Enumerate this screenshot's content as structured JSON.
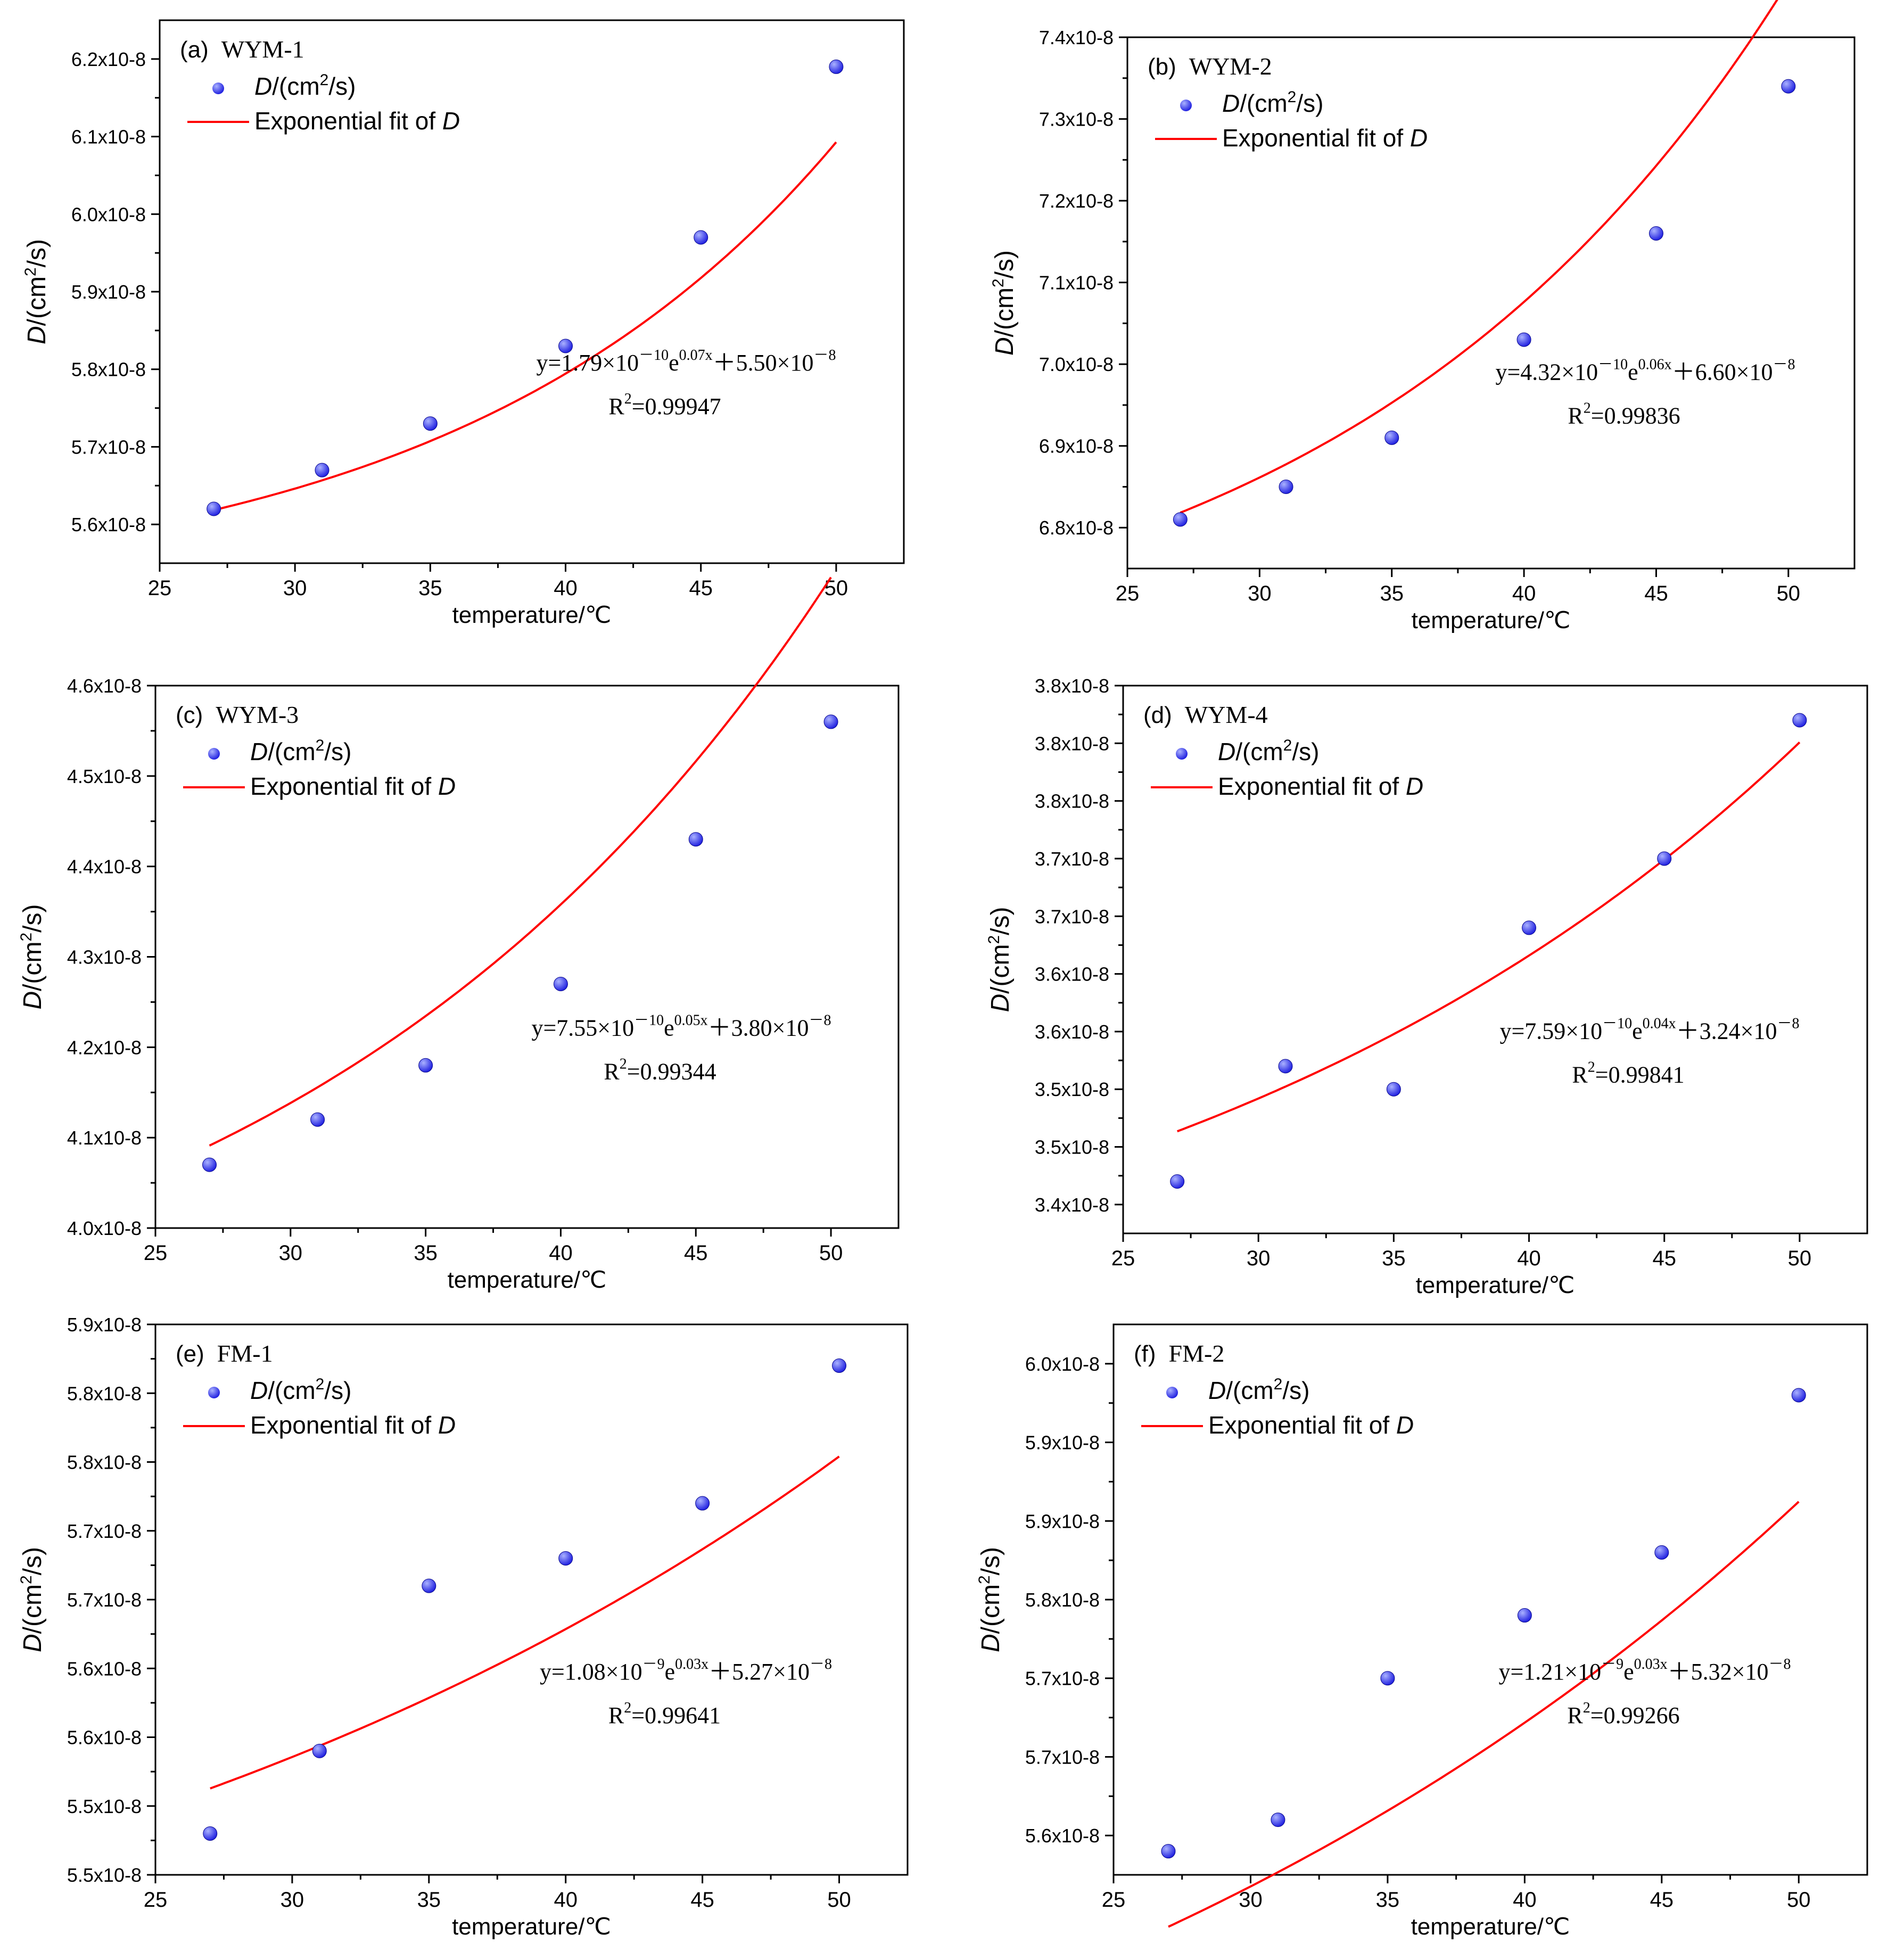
{
  "figure": {
    "x_axis_label": "temperature/℃",
    "y_axis_label_parts": [
      "D",
      "/(cm",
      "2",
      "/s)"
    ],
    "legend_marker_label_parts": [
      "D",
      "/(cm",
      "2",
      "/s)"
    ],
    "legend_fit_label_parts": [
      "Exponential fit of ",
      "D"
    ]
  },
  "colors": {
    "point": "#1f1fe0",
    "point_highlight": "#aab2ff",
    "fit_line": "#ff0000",
    "axis": "#000000"
  },
  "chart_data": [
    {
      "type": "scatter",
      "panel": "(a)",
      "title": "WYM-1",
      "x": [
        27,
        31,
        35,
        40,
        45,
        50
      ],
      "y": [
        5.62,
        5.67,
        5.73,
        5.83,
        5.97,
        6.19
      ],
      "y_unit": "x10^-8 cm2/s",
      "xlim": [
        25,
        52.5
      ],
      "ylim": [
        5.55,
        6.25
      ],
      "xticks": [
        25,
        30,
        35,
        40,
        45,
        50
      ],
      "yticks": [
        5.6,
        5.7,
        5.8,
        5.9,
        6.0,
        6.1,
        6.2
      ],
      "ytick_labels": [
        "5.6x10-8",
        "5.7x10-8",
        "5.8x10-8",
        "5.9x10-8",
        "6.0x10-8",
        "6.1x10-8",
        "6.2x10-8"
      ],
      "fit": {
        "a": 0.0179,
        "b": 0.07,
        "c": 5.5
      },
      "equation_parts": [
        "y=1.79×10",
        "－10",
        "e",
        "0.07x",
        "＋5.50×10",
        "－8"
      ],
      "r2_parts": [
        "R",
        "2",
        "=0.99947"
      ]
    },
    {
      "type": "scatter",
      "panel": "(b)",
      "title": "WYM-2",
      "x": [
        27,
        31,
        35,
        40,
        45,
        50
      ],
      "y": [
        6.81,
        6.85,
        6.91,
        7.03,
        7.16,
        7.34
      ],
      "y_unit": "x10^-8 cm2/s",
      "xlim": [
        25,
        52.5
      ],
      "ylim": [
        6.75,
        7.4
      ],
      "xticks": [
        25,
        30,
        35,
        40,
        45,
        50
      ],
      "yticks": [
        6.8,
        6.9,
        7.0,
        7.1,
        7.2,
        7.3,
        7.4
      ],
      "ytick_labels": [
        "6.8x10-8",
        "6.9x10-8",
        "7.0x10-8",
        "7.1x10-8",
        "7.2x10-8",
        "7.3x10-8",
        "7.4x10-8"
      ],
      "fit": {
        "a": 0.0432,
        "b": 0.06,
        "c": 6.6
      },
      "equation_parts": [
        "y=4.32×10",
        "－10",
        "e",
        "0.06x",
        "＋6.60×10",
        "－8"
      ],
      "r2_parts": [
        "R",
        "2",
        "=0.99836"
      ]
    },
    {
      "type": "scatter",
      "panel": "(c)",
      "title": "WYM-3",
      "x": [
        27,
        31,
        35,
        40,
        45,
        50
      ],
      "y": [
        4.07,
        4.12,
        4.18,
        4.27,
        4.43,
        4.56
      ],
      "y_unit": "x10^-8 cm2/s",
      "xlim": [
        25,
        52.5
      ],
      "ylim": [
        4.0,
        4.6
      ],
      "xticks": [
        25,
        30,
        35,
        40,
        45,
        50
      ],
      "yticks": [
        4.0,
        4.1,
        4.2,
        4.3,
        4.4,
        4.5,
        4.6
      ],
      "ytick_labels": [
        "4.0x10-8",
        "4.1x10-8",
        "4.2x10-8",
        "4.3x10-8",
        "4.4x10-8",
        "4.5x10-8",
        "4.6x10-8"
      ],
      "fit": {
        "a": 0.0755,
        "b": 0.05,
        "c": 3.8
      },
      "equation_parts": [
        "y=7.55×10",
        "－10",
        "e",
        "0.05x",
        "＋3.80×10",
        "－8"
      ],
      "r2_parts": [
        "R",
        "2",
        "=0.99344"
      ]
    },
    {
      "type": "scatter",
      "panel": "(d)",
      "title": "WYM-4",
      "x": [
        27,
        31,
        35,
        40,
        45,
        50
      ],
      "y": [
        3.42,
        3.52,
        3.5,
        3.64,
        3.7,
        3.82
      ],
      "y_unit": "x10^-8 cm2/s",
      "xlim": [
        25,
        52.5
      ],
      "ylim": [
        3.375,
        3.85
      ],
      "xticks": [
        25,
        30,
        35,
        40,
        45,
        50
      ],
      "yticks": [
        3.4,
        3.45,
        3.5,
        3.55,
        3.6,
        3.65,
        3.7,
        3.75,
        3.8,
        3.85
      ],
      "ytick_labels": [
        "3.4x10-8",
        "3.5x10-8",
        "3.5x10-8",
        "3.6x10-8",
        "3.6x10-8",
        "3.7x10-8",
        "3.7x10-8",
        "3.8x10-8",
        "3.8x10-8",
        "3.8x10-8"
      ],
      "fit": {
        "a": 0.0759,
        "b": 0.04,
        "c": 3.24
      },
      "equation_parts": [
        "y=7.59×10",
        "－10",
        "e",
        "0.04x",
        "＋3.24×10",
        "－8"
      ],
      "r2_parts": [
        "R",
        "2",
        "=0.99841"
      ]
    },
    {
      "type": "scatter",
      "panel": "(e)",
      "title": "FM-1",
      "x": [
        27,
        31,
        35,
        40,
        45,
        50
      ],
      "y": [
        5.48,
        5.54,
        5.66,
        5.68,
        5.72,
        5.82
      ],
      "y_unit": "x10^-8 cm2/s",
      "xlim": [
        25,
        52.5
      ],
      "ylim": [
        5.45,
        5.85
      ],
      "xticks": [
        25,
        30,
        35,
        40,
        45,
        50
      ],
      "yticks": [
        5.45,
        5.5,
        5.55,
        5.6,
        5.65,
        5.7,
        5.75,
        5.8,
        5.85
      ],
      "ytick_labels": [
        "5.5x10-8",
        "5.5x10-8",
        "5.6x10-8",
        "5.6x10-8",
        "5.7x10-8",
        "5.7x10-8",
        "5.8x10-8",
        "5.8x10-8",
        "5.9x10-8"
      ],
      "fit": {
        "a": 0.108,
        "b": 0.03,
        "c": 5.27
      },
      "equation_parts": [
        "y=1.08×10",
        "－9",
        "e",
        "0.03x",
        "＋5.27×10",
        "－8"
      ],
      "r2_parts": [
        "R",
        "2",
        "=0.99641"
      ]
    },
    {
      "type": "scatter",
      "panel": "(f)",
      "title": "FM-2",
      "x": [
        27,
        31,
        35,
        40,
        45,
        50
      ],
      "y": [
        5.64,
        5.66,
        5.75,
        5.79,
        5.83,
        5.93
      ],
      "y_unit": "x10^-8 cm2/s",
      "xlim": [
        25,
        52.5
      ],
      "ylim": [
        5.625,
        5.975
      ],
      "xticks": [
        25,
        30,
        35,
        40,
        45,
        50
      ],
      "yticks": [
        5.65,
        5.7,
        5.75,
        5.8,
        5.85,
        5.9,
        5.95
      ],
      "ytick_labels": [
        "5.6x10-8",
        "5.7x10-8",
        "5.7x10-8",
        "5.8x10-8",
        "5.9x10-8",
        "5.9x10-8",
        "6.0x10-8"
      ],
      "fit": {
        "a": 0.121,
        "b": 0.03,
        "c": 5.32
      },
      "equation_parts": [
        "y=1.21×10",
        "－9",
        "e",
        "0.03x",
        "＋5.32×10",
        "－8"
      ],
      "r2_parts": [
        "R",
        "2",
        "=0.99266"
      ]
    }
  ]
}
